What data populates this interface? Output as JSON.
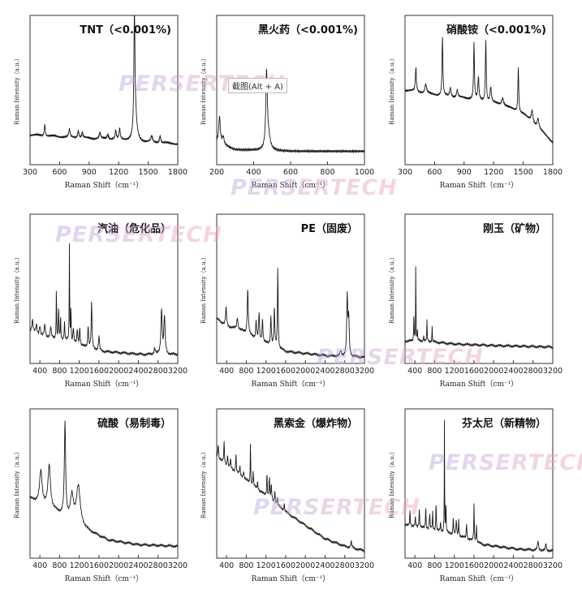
{
  "watermark": "PERSERTECH",
  "tooltip": "截图(Alt + A)",
  "colors": {
    "line": "#1a1a1a",
    "frame": "#333333",
    "text": "#222222",
    "watermark_start": "#b7a6e8",
    "watermark_end": "#f0a4b0"
  },
  "chart_data": [
    {
      "id": "tnt",
      "type": "line",
      "title": "TNT（<0.001%)",
      "xlabel": "Raman Shift（cm⁻¹）",
      "ylabel": "Raman Intensity（a.u.）",
      "xlim": [
        300,
        1800
      ],
      "ylim": [
        0,
        1
      ],
      "xticks": [
        300,
        600,
        900,
        1200,
        1500,
        1800
      ],
      "baseline": [
        [
          300,
          0.2
        ],
        [
          800,
          0.18
        ],
        [
          1200,
          0.17
        ],
        [
          1500,
          0.15
        ],
        [
          1800,
          0.14
        ]
      ],
      "peaks": [
        [
          450,
          0.08,
          6
        ],
        [
          700,
          0.05,
          8
        ],
        [
          790,
          0.05,
          8
        ],
        [
          830,
          0.04,
          6
        ],
        [
          1010,
          0.04,
          8
        ],
        [
          1090,
          0.03,
          8
        ],
        [
          1170,
          0.06,
          6
        ],
        [
          1210,
          0.07,
          6
        ],
        [
          1360,
          0.8,
          6
        ],
        [
          1370,
          0.15,
          18
        ],
        [
          1535,
          0.04,
          10
        ],
        [
          1620,
          0.05,
          8
        ]
      ]
    },
    {
      "id": "black-powder",
      "type": "line",
      "title": "黑火药（<0.001%)",
      "xlabel": "Raman Shift（cm⁻¹）",
      "ylabel": "Raman Intensity（a.u.）",
      "xlim": [
        200,
        1000
      ],
      "ylim": [
        0,
        1
      ],
      "xticks": [
        200,
        400,
        600,
        800,
        1000
      ],
      "baseline": [
        [
          200,
          0.15
        ],
        [
          300,
          0.1
        ],
        [
          600,
          0.09
        ],
        [
          1000,
          0.09
        ]
      ],
      "peaks": [
        [
          215,
          0.18,
          5
        ],
        [
          235,
          0.05,
          6
        ],
        [
          470,
          0.5,
          5
        ],
        [
          480,
          0.08,
          12
        ]
      ]
    },
    {
      "id": "ammonium-nitrate",
      "type": "line",
      "title": "硝酸铵（<0.001%)",
      "xlabel": "Raman Shift（cm⁻¹）",
      "ylabel": "Raman Intensity（a.u.）",
      "xlim": [
        300,
        1800
      ],
      "ylim": [
        0,
        1
      ],
      "xticks": [
        300,
        600,
        900,
        1200,
        1500,
        1800
      ],
      "baseline": [
        [
          300,
          0.5
        ],
        [
          700,
          0.46
        ],
        [
          1000,
          0.44
        ],
        [
          1300,
          0.4
        ],
        [
          1500,
          0.34
        ],
        [
          1650,
          0.25
        ],
        [
          1800,
          0.15
        ]
      ],
      "peaks": [
        [
          410,
          0.16,
          6
        ],
        [
          510,
          0.06,
          10
        ],
        [
          680,
          0.4,
          5
        ],
        [
          760,
          0.06,
          8
        ],
        [
          830,
          0.05,
          8
        ],
        [
          1000,
          0.38,
          5
        ],
        [
          1045,
          0.15,
          6
        ],
        [
          1120,
          0.42,
          5
        ],
        [
          1170,
          0.1,
          8
        ],
        [
          1290,
          0.05,
          10
        ],
        [
          1450,
          0.3,
          5
        ],
        [
          1590,
          0.08,
          10
        ],
        [
          1650,
          0.06,
          10
        ]
      ]
    },
    {
      "id": "gasoline",
      "type": "line",
      "title": "汽油（危化品）",
      "xlabel": "Raman Shift（cm⁻¹）",
      "ylabel": "Raman Intensity（a.u.）",
      "xlim": [
        200,
        3200
      ],
      "ylim": [
        0,
        1
      ],
      "xticks": [
        400,
        800,
        1200,
        1600,
        2000,
        2400,
        2800,
        3200
      ],
      "baseline": [
        [
          200,
          0.22
        ],
        [
          400,
          0.18
        ],
        [
          700,
          0.17
        ],
        [
          1000,
          0.15
        ],
        [
          1200,
          0.12
        ],
        [
          1700,
          0.08
        ],
        [
          2500,
          0.06
        ],
        [
          3200,
          0.06
        ]
      ],
      "peaks": [
        [
          250,
          0.08,
          15
        ],
        [
          330,
          0.06,
          15
        ],
        [
          400,
          0.07,
          15
        ],
        [
          500,
          0.08,
          15
        ],
        [
          620,
          0.07,
          12
        ],
        [
          735,
          0.35,
          5
        ],
        [
          780,
          0.22,
          6
        ],
        [
          820,
          0.15,
          6
        ],
        [
          900,
          0.12,
          8
        ],
        [
          1000,
          0.65,
          5
        ],
        [
          1030,
          0.25,
          5
        ],
        [
          1080,
          0.1,
          10
        ],
        [
          1160,
          0.1,
          10
        ],
        [
          1210,
          0.12,
          10
        ],
        [
          1380,
          0.15,
          10
        ],
        [
          1450,
          0.3,
          10
        ],
        [
          1600,
          0.1,
          10
        ],
        [
          2730,
          0.04,
          15
        ],
        [
          2870,
          0.3,
          15
        ],
        [
          2930,
          0.25,
          15
        ]
      ]
    },
    {
      "id": "pe",
      "type": "line",
      "title": "PE（固废）",
      "xlabel": "Raman Shift（cm⁻¹）",
      "ylabel": "Raman Intensity（a.u.）",
      "xlim": [
        200,
        3200
      ],
      "ylim": [
        0,
        1
      ],
      "xticks": [
        400,
        800,
        1200,
        1600,
        2000,
        2400,
        2800,
        3200
      ],
      "baseline": [
        [
          200,
          0.3
        ],
        [
          400,
          0.25
        ],
        [
          700,
          0.22
        ],
        [
          1100,
          0.15
        ],
        [
          1600,
          0.08
        ],
        [
          2500,
          0.05
        ],
        [
          2800,
          0.05
        ],
        [
          3200,
          0.04
        ]
      ],
      "peaks": [
        [
          390,
          0.12,
          12
        ],
        [
          620,
          0.08,
          15
        ],
        [
          830,
          0.3,
          12
        ],
        [
          1000,
          0.12,
          10
        ],
        [
          1060,
          0.18,
          10
        ],
        [
          1130,
          0.15,
          10
        ],
        [
          1300,
          0.2,
          10
        ],
        [
          1370,
          0.25,
          10
        ],
        [
          1440,
          0.55,
          8
        ],
        [
          2720,
          0.03,
          15
        ],
        [
          2850,
          0.4,
          12
        ],
        [
          2880,
          0.25,
          12
        ]
      ]
    },
    {
      "id": "corundum",
      "type": "line",
      "title": "刚玉（矿物）",
      "xlabel": "Raman Shift（cm⁻¹）",
      "ylabel": "Raman Intensity（a.u.）",
      "xlim": [
        200,
        3200
      ],
      "ylim": [
        0,
        1
      ],
      "xticks": [
        400,
        800,
        1200,
        1600,
        2000,
        2400,
        2800,
        3200
      ],
      "baseline": [
        [
          200,
          0.15
        ],
        [
          600,
          0.15
        ],
        [
          1200,
          0.13
        ],
        [
          2000,
          0.12
        ],
        [
          3200,
          0.11
        ]
      ],
      "peaks": [
        [
          380,
          0.2,
          5
        ],
        [
          418,
          0.55,
          4
        ],
        [
          450,
          0.06,
          6
        ],
        [
          578,
          0.04,
          6
        ],
        [
          645,
          0.14,
          5
        ],
        [
          750,
          0.1,
          5
        ]
      ]
    },
    {
      "id": "sulfuric-acid",
      "type": "line",
      "title": "硫酸（易制毒）",
      "xlabel": "Raman Shift（cm⁻¹）",
      "ylabel": "Raman Intensity（a.u.）",
      "xlim": [
        200,
        3200
      ],
      "ylim": [
        0,
        1
      ],
      "xticks": [
        400,
        800,
        1200,
        1600,
        2000,
        2400,
        2800,
        3200
      ],
      "baseline": [
        [
          200,
          0.4
        ],
        [
          500,
          0.35
        ],
        [
          800,
          0.3
        ],
        [
          1100,
          0.25
        ],
        [
          1400,
          0.18
        ],
        [
          1800,
          0.12
        ],
        [
          2400,
          0.09
        ],
        [
          3200,
          0.08
        ]
      ],
      "peaks": [
        [
          420,
          0.22,
          30
        ],
        [
          590,
          0.28,
          30
        ],
        [
          910,
          0.62,
          15
        ],
        [
          1050,
          0.15,
          35
        ],
        [
          1180,
          0.25,
          45
        ]
      ]
    },
    {
      "id": "hexogen",
      "type": "line",
      "title": "黑索金（爆炸物）",
      "xlabel": "Raman Shift（cm⁻¹）",
      "ylabel": "Raman Intensity（a.u.）",
      "xlim": [
        200,
        3200
      ],
      "ylim": [
        0,
        1
      ],
      "xticks": [
        400,
        800,
        1200,
        1600,
        2000,
        2400,
        2800,
        3200
      ],
      "baseline": [
        [
          200,
          0.68
        ],
        [
          400,
          0.62
        ],
        [
          700,
          0.55
        ],
        [
          1000,
          0.47
        ],
        [
          1300,
          0.39
        ],
        [
          1600,
          0.31
        ],
        [
          2000,
          0.22
        ],
        [
          2400,
          0.13
        ],
        [
          2800,
          0.08
        ],
        [
          3200,
          0.05
        ]
      ],
      "peaks": [
        [
          230,
          0.1,
          8
        ],
        [
          350,
          0.14,
          8
        ],
        [
          420,
          0.08,
          8
        ],
        [
          480,
          0.06,
          8
        ],
        [
          590,
          0.12,
          8
        ],
        [
          670,
          0.06,
          8
        ],
        [
          745,
          0.05,
          8
        ],
        [
          885,
          0.3,
          5
        ],
        [
          940,
          0.1,
          6
        ],
        [
          1030,
          0.05,
          8
        ],
        [
          1220,
          0.15,
          8
        ],
        [
          1270,
          0.14,
          8
        ],
        [
          1310,
          0.1,
          8
        ],
        [
          1380,
          0.08,
          8
        ],
        [
          1430,
          0.05,
          8
        ],
        [
          1570,
          0.05,
          8
        ],
        [
          2930,
          0.04,
          12
        ]
      ]
    },
    {
      "id": "fentanyl",
      "type": "line",
      "title": "芬太尼（新精物）",
      "xlabel": "Raman Shift（cm⁻¹）",
      "ylabel": "Raman Intensity（a.u.）",
      "xlim": [
        200,
        3200
      ],
      "ylim": [
        0,
        1
      ],
      "xticks": [
        400,
        800,
        1200,
        1600,
        2000,
        2400,
        2800,
        3200
      ],
      "baseline": [
        [
          200,
          0.22
        ],
        [
          600,
          0.2
        ],
        [
          1200,
          0.16
        ],
        [
          1800,
          0.09
        ],
        [
          2500,
          0.06
        ],
        [
          3200,
          0.05
        ]
      ],
      "peaks": [
        [
          300,
          0.1,
          8
        ],
        [
          410,
          0.06,
          8
        ],
        [
          490,
          0.12,
          8
        ],
        [
          620,
          0.15,
          6
        ],
        [
          700,
          0.1,
          8
        ],
        [
          760,
          0.12,
          6
        ],
        [
          830,
          0.2,
          6
        ],
        [
          920,
          0.06,
          6
        ],
        [
          1000,
          0.75,
          4
        ],
        [
          1030,
          0.2,
          5
        ],
        [
          1180,
          0.12,
          6
        ],
        [
          1240,
          0.1,
          8
        ],
        [
          1290,
          0.12,
          6
        ],
        [
          1450,
          0.1,
          8
        ],
        [
          1600,
          0.25,
          6
        ],
        [
          1650,
          0.12,
          6
        ],
        [
          2900,
          0.06,
          12
        ],
        [
          3060,
          0.05,
          8
        ]
      ]
    }
  ]
}
